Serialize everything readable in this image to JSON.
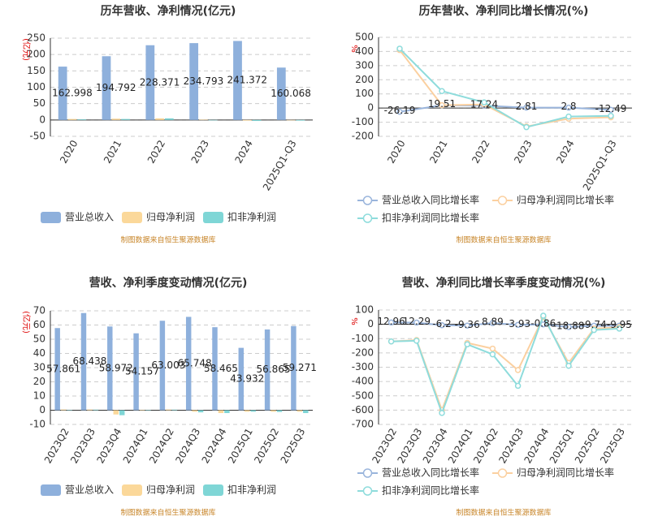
{
  "chart_data": [
    {
      "type": "bar",
      "title": "历年营收、净利情况(亿元)",
      "y_label": "(亿元)",
      "source": "制图数据来自恒生聚源数据库",
      "categories": [
        "2020",
        "2021",
        "2022",
        "2023",
        "2024",
        "2025Q1-Q3"
      ],
      "series": [
        {
          "name": "营业总收入",
          "color": "#8eb0dc",
          "values": [
            162.998,
            194.792,
            228.371,
            234.793,
            241.372,
            160.068
          ],
          "show_labels": true
        },
        {
          "name": "归母净利润",
          "color": "#fbd89a",
          "values": [
            3,
            4,
            5,
            1,
            -2,
            -1
          ]
        },
        {
          "name": "扣非净利润",
          "color": "#7fd6d6",
          "values": [
            2,
            3,
            5,
            0,
            -3,
            -2
          ]
        }
      ],
      "ylim": [
        -50,
        250
      ],
      "yticks": [
        -50,
        0,
        50,
        100,
        150,
        200,
        250
      ],
      "grid": true
    },
    {
      "type": "line",
      "title": "历年营收、净利同比增长情况(%)",
      "y_label": "%",
      "source": "制图数据来自恒生聚源数据库",
      "categories": [
        "2020",
        "2021",
        "2022",
        "2023",
        "2024",
        "2025Q1-Q3"
      ],
      "series": [
        {
          "name": "营业总收入同比增长率",
          "color": "#9ab5dc",
          "values": [
            -26.19,
            19.51,
            17.24,
            2.81,
            2.8,
            -12.49
          ],
          "show_labels": true
        },
        {
          "name": "归母净利润同比增长率",
          "color": "#fbd0a0",
          "values": [
            410,
            20,
            25,
            -130,
            -75,
            -65
          ]
        },
        {
          "name": "扣非净利润同比增长率",
          "color": "#8edcdc",
          "values": [
            420,
            120,
            40,
            -135,
            -60,
            -55
          ]
        }
      ],
      "ylim": [
        -200,
        500
      ],
      "yticks": [
        -200,
        -100,
        0,
        100,
        200,
        300,
        400,
        500
      ],
      "grid": true
    },
    {
      "type": "bar",
      "title": "营收、净利季度变动情况(亿元)",
      "y_label": "(亿元)",
      "source": "制图数据来自恒生聚源数据库",
      "categories": [
        "2023Q2",
        "2023Q3",
        "2023Q4",
        "2024Q1",
        "2024Q2",
        "2024Q3",
        "2024Q4",
        "2025Q1",
        "2025Q2",
        "2025Q3"
      ],
      "series": [
        {
          "name": "营业总收入",
          "color": "#8eb0dc",
          "values": [
            57.861,
            68.438,
            58.972,
            54.157,
            63.003,
            65.748,
            58.465,
            43.932,
            56.865,
            59.271
          ],
          "show_labels": true
        },
        {
          "name": "归母净利润",
          "color": "#fbd89a",
          "values": [
            0.5,
            0.5,
            -3,
            0.3,
            0.5,
            -1,
            -2,
            -1,
            -1,
            -1
          ]
        },
        {
          "name": "扣非净利润",
          "color": "#7fd6d6",
          "values": [
            0.3,
            0.4,
            -3.5,
            0.2,
            0.4,
            -1.5,
            -2,
            -1,
            -1.2,
            -2
          ]
        }
      ],
      "ylim": [
        -10,
        70
      ],
      "yticks": [
        -10,
        0,
        10,
        20,
        30,
        40,
        50,
        60,
        70
      ],
      "grid": true
    },
    {
      "type": "line",
      "title": "营收、净利同比增长率季度变动情况(%)",
      "y_label": "%",
      "source": "制图数据来自恒生聚源数据库",
      "categories": [
        "2023Q2",
        "2023Q3",
        "2023Q4",
        "2024Q1",
        "2024Q2",
        "2024Q3",
        "2024Q4",
        "2025Q1",
        "2025Q2",
        "2025Q3"
      ],
      "series": [
        {
          "name": "营业总收入同比增长率",
          "color": "#9ab5dc",
          "values": [
            12.96,
            12.29,
            -6.2,
            -9.36,
            8.89,
            -3.93,
            -0.86,
            -18.88,
            -9.74,
            -9.95
          ],
          "show_labels": true
        },
        {
          "name": "归母净利润同比增长率",
          "color": "#fbd0a0",
          "values": [
            -120,
            -110,
            -600,
            -130,
            -170,
            -320,
            50,
            -270,
            -30,
            -20
          ]
        },
        {
          "name": "扣非净利润同比增长率",
          "color": "#8edcdc",
          "values": [
            -120,
            -115,
            -620,
            -140,
            -210,
            -430,
            60,
            -290,
            -40,
            -30
          ]
        }
      ],
      "ylim": [
        -700,
        100
      ],
      "yticks": [
        -700,
        -600,
        -500,
        -400,
        -300,
        -200,
        -100,
        0,
        100
      ],
      "grid": true
    }
  ]
}
